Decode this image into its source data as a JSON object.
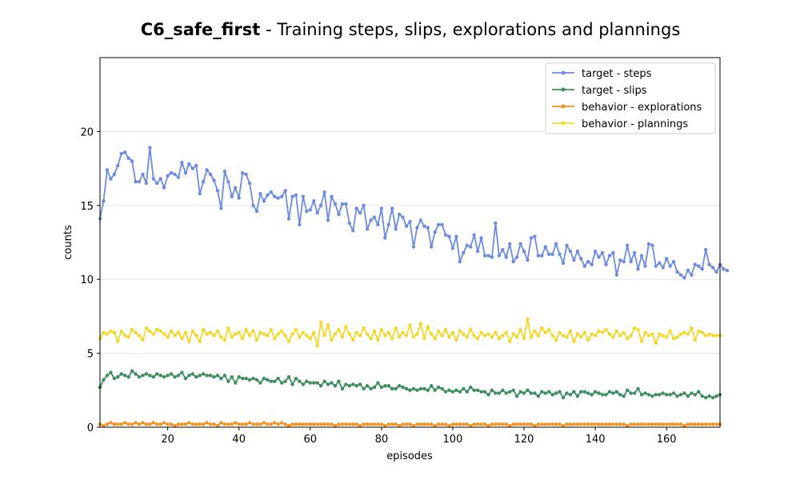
{
  "chart_data": {
    "type": "line",
    "title_bold": "C6_safe_first",
    "title_rest": " - Training steps, slips, explorations and plannings",
    "xlabel": "episodes",
    "ylabel": "counts",
    "xlim": [
      1,
      175
    ],
    "ylim": [
      0,
      25
    ],
    "xticks": [
      20,
      40,
      60,
      80,
      100,
      120,
      140,
      160
    ],
    "yticks": [
      0,
      5,
      10,
      15,
      20
    ],
    "grid": "horizontal",
    "legend_position": "top-right",
    "series": [
      {
        "name": "target - steps",
        "color": "#6c8ce3",
        "values": [
          14.1,
          15.3,
          17.4,
          16.8,
          17.1,
          17.7,
          18.5,
          18.6,
          18.2,
          18.0,
          16.6,
          16.6,
          17.1,
          16.5,
          18.9,
          16.8,
          16.5,
          16.8,
          16.2,
          17.0,
          17.2,
          17.1,
          16.9,
          17.9,
          17.2,
          17.8,
          17.5,
          17.7,
          15.8,
          16.6,
          17.4,
          17.1,
          16.7,
          16.0,
          14.8,
          17.3,
          16.6,
          15.6,
          16.2,
          15.5,
          17.2,
          17.1,
          16.5,
          15.0,
          14.6,
          15.8,
          15.3,
          15.7,
          15.9,
          15.6,
          15.5,
          15.6,
          16.0,
          14.1,
          15.6,
          15.7,
          13.7,
          15.6,
          14.6,
          14.7,
          15.3,
          14.5,
          15.0,
          15.9,
          14.0,
          15.6,
          15.1,
          14.4,
          15.1,
          15.1,
          13.8,
          13.3,
          14.8,
          14.5,
          15.0,
          13.4,
          14.0,
          14.2,
          13.7,
          14.8,
          12.8,
          13.7,
          14.8,
          13.4,
          14.4,
          14.2,
          13.6,
          13.9,
          12.2,
          13.5,
          14.0,
          13.6,
          13.5,
          12.2,
          13.2,
          13.7,
          13.7,
          13.0,
          12.9,
          12.1,
          12.9,
          11.2,
          11.8,
          12.3,
          12.2,
          13.0,
          11.9,
          12.8,
          11.6,
          11.6,
          11.5,
          13.8,
          11.6,
          12.0,
          11.5,
          12.4,
          11.2,
          11.5,
          12.4,
          11.9,
          11.3,
          12.8,
          12.9,
          11.6,
          11.6,
          12.2,
          11.7,
          11.7,
          12.4,
          11.7,
          11.1,
          12.3,
          11.9,
          11.3,
          11.9,
          11.4,
          10.9,
          11.2,
          11.0,
          11.9,
          11.5,
          11.8,
          11.0,
          11.6,
          11.8,
          10.3,
          11.3,
          11.2,
          12.3,
          11.2,
          11.8,
          10.7,
          11.6,
          10.9,
          12.4,
          12.3,
          10.9,
          11.1,
          10.8,
          11.4,
          10.9,
          11.2,
          10.5,
          10.3,
          10.1,
          10.6,
          10.3,
          11.0,
          10.9,
          10.7,
          12.0,
          11.0,
          10.8,
          10.5,
          11.0,
          10.7,
          10.6
        ]
      },
      {
        "name": "target - slips",
        "color": "#3d8f5f",
        "values": [
          2.7,
          3.2,
          3.5,
          3.7,
          3.3,
          3.4,
          3.6,
          3.5,
          3.4,
          3.8,
          3.6,
          3.4,
          3.5,
          3.6,
          3.5,
          3.4,
          3.6,
          3.5,
          3.4,
          3.5,
          3.6,
          3.4,
          3.5,
          3.7,
          3.3,
          3.5,
          3.6,
          3.4,
          3.5,
          3.6,
          3.5,
          3.5,
          3.4,
          3.5,
          3.3,
          3.5,
          3.1,
          3.4,
          3.0,
          3.4,
          3.3,
          3.3,
          3.2,
          3.3,
          3.2,
          3.0,
          3.3,
          3.2,
          3.1,
          3.1,
          3.3,
          3.0,
          3.1,
          3.4,
          2.9,
          3.3,
          3.1,
          2.9,
          3.1,
          3.0,
          3.0,
          3.0,
          2.8,
          3.1,
          2.9,
          3.0,
          2.8,
          3.1,
          2.6,
          2.9,
          2.8,
          2.9,
          2.8,
          2.9,
          2.6,
          2.8,
          2.6,
          2.7,
          3.0,
          2.7,
          2.8,
          2.8,
          2.6,
          2.6,
          2.8,
          2.7,
          2.6,
          2.5,
          2.6,
          2.5,
          2.6,
          2.6,
          2.5,
          2.8,
          2.5,
          2.7,
          2.6,
          2.4,
          2.5,
          2.4,
          2.5,
          2.4,
          2.6,
          2.4,
          2.7,
          2.5,
          2.5,
          2.4,
          2.4,
          2.2,
          2.5,
          2.3,
          2.3,
          2.5,
          2.3,
          2.4,
          2.5,
          2.1,
          2.4,
          2.3,
          2.5,
          2.3,
          2.3,
          2.1,
          2.4,
          2.3,
          2.4,
          2.2,
          2.3,
          2.4,
          2.0,
          2.3,
          2.2,
          2.4,
          2.1,
          2.4,
          2.4,
          2.3,
          2.2,
          2.4,
          2.3,
          2.2,
          2.2,
          2.4,
          2.3,
          2.4,
          2.2,
          2.1,
          2.5,
          2.3,
          2.3,
          2.6,
          2.2,
          2.3,
          2.2,
          2.1,
          2.2,
          2.2,
          2.3,
          2.2,
          2.2,
          2.3,
          2.1,
          2.2,
          2.3,
          2.1,
          2.3,
          2.2,
          2.4,
          2.1,
          2.0,
          2.1,
          2.0,
          2.1,
          2.2
        ]
      },
      {
        "name": "behavior - explorations",
        "color": "#f5921e",
        "values": [
          0.2,
          0.1,
          0.2,
          0.3,
          0.2,
          0.2,
          0.2,
          0.3,
          0.2,
          0.2,
          0.3,
          0.2,
          0.3,
          0.2,
          0.2,
          0.3,
          0.2,
          0.2,
          0.3,
          0.2,
          0.2,
          0.1,
          0.2,
          0.2,
          0.2,
          0.3,
          0.2,
          0.2,
          0.2,
          0.2,
          0.3,
          0.2,
          0.2,
          0.1,
          0.3,
          0.2,
          0.2,
          0.2,
          0.3,
          0.2,
          0.2,
          0.2,
          0.3,
          0.2,
          0.2,
          0.2,
          0.3,
          0.2,
          0.2,
          0.3,
          0.2,
          0.3,
          0.2,
          0.1,
          0.2,
          0.2,
          0.2,
          0.2,
          0.2,
          0.2,
          0.2,
          0.2,
          0.2,
          0.2,
          0.2,
          0.2,
          0.1,
          0.2,
          0.2,
          0.2,
          0.2,
          0.2,
          0.2,
          0.1,
          0.2,
          0.2,
          0.2,
          0.2,
          0.2,
          0.2,
          0.1,
          0.2,
          0.2,
          0.2,
          0.1,
          0.2,
          0.2,
          0.2,
          0.1,
          0.2,
          0.2,
          0.2,
          0.2,
          0.2,
          0.1,
          0.2,
          0.2,
          0.2,
          0.1,
          0.2,
          0.2,
          0.2,
          0.2,
          0.2,
          0.1,
          0.2,
          0.2,
          0.2,
          0.2,
          0.1,
          0.2,
          0.2,
          0.2,
          0.2,
          0.2,
          0.1,
          0.2,
          0.2,
          0.2,
          0.2,
          0.2,
          0.2,
          0.1,
          0.2,
          0.2,
          0.2,
          0.2,
          0.2,
          0.2,
          0.2,
          0.1,
          0.2,
          0.2,
          0.2,
          0.2,
          0.2,
          0.2,
          0.2,
          0.2,
          0.2,
          0.2,
          0.2,
          0.2,
          0.2,
          0.2,
          0.2,
          0.2,
          0.2,
          0.1,
          0.2,
          0.2,
          0.2,
          0.2,
          0.2,
          0.2,
          0.2,
          0.2,
          0.2,
          0.2,
          0.2,
          0.2,
          0.2,
          0.2,
          0.2,
          0.1,
          0.2,
          0.2,
          0.2,
          0.2,
          0.2,
          0.2,
          0.2,
          0.2,
          0.2,
          0.2
        ]
      },
      {
        "name": "behavior - plannings",
        "color": "#f7d62a",
        "values": [
          6.0,
          6.4,
          6.3,
          6.5,
          6.4,
          5.8,
          6.5,
          6.2,
          6.1,
          6.6,
          6.4,
          6.2,
          5.9,
          6.7,
          6.5,
          6.3,
          6.6,
          6.5,
          6.3,
          6.1,
          6.5,
          6.2,
          6.4,
          6.0,
          6.4,
          5.8,
          6.5,
          6.2,
          5.8,
          6.6,
          6.3,
          6.4,
          6.2,
          6.5,
          6.1,
          5.9,
          6.7,
          6.1,
          6.3,
          6.4,
          6.0,
          6.6,
          6.2,
          6.5,
          5.9,
          6.4,
          6.3,
          6.2,
          6.6,
          6.0,
          6.3,
          6.5,
          6.2,
          5.8,
          6.3,
          6.6,
          6.1,
          6.4,
          6.2,
          6.0,
          6.4,
          5.5,
          7.1,
          6.2,
          6.9,
          5.9,
          6.3,
          6.6,
          6.1,
          6.8,
          6.3,
          5.9,
          6.4,
          6.2,
          6.7,
          6.3,
          6.0,
          6.5,
          5.9,
          6.6,
          6.2,
          6.4,
          6.0,
          6.7,
          6.1,
          6.4,
          6.2,
          6.9,
          6.1,
          6.3,
          7.0,
          6.0,
          6.8,
          6.3,
          6.0,
          6.5,
          6.2,
          6.6,
          6.1,
          6.4,
          5.9,
          6.5,
          6.3,
          6.1,
          6.6,
          6.2,
          6.0,
          6.4,
          6.2,
          6.3,
          6.1,
          6.4,
          6.0,
          6.2,
          6.4,
          5.8,
          6.3,
          6.1,
          6.6,
          6.0,
          7.3,
          6.1,
          6.5,
          6.2,
          6.7,
          6.4,
          6.6,
          6.2,
          5.9,
          6.4,
          6.2,
          6.1,
          6.5,
          5.8,
          6.3,
          6.1,
          6.4,
          5.9,
          6.3,
          6.2,
          6.5,
          6.4,
          6.6,
          6.3,
          6.1,
          6.5,
          6.2,
          6.4,
          6.0,
          6.2,
          6.7,
          6.6,
          5.8,
          6.4,
          6.2,
          6.3,
          5.7,
          6.3,
          6.2,
          6.1,
          6.5,
          6.0,
          6.1,
          6.3,
          6.4,
          6.3,
          6.7,
          5.9,
          6.5,
          6.4,
          6.2,
          6.3,
          6.2,
          6.2,
          6.2
        ]
      }
    ]
  }
}
